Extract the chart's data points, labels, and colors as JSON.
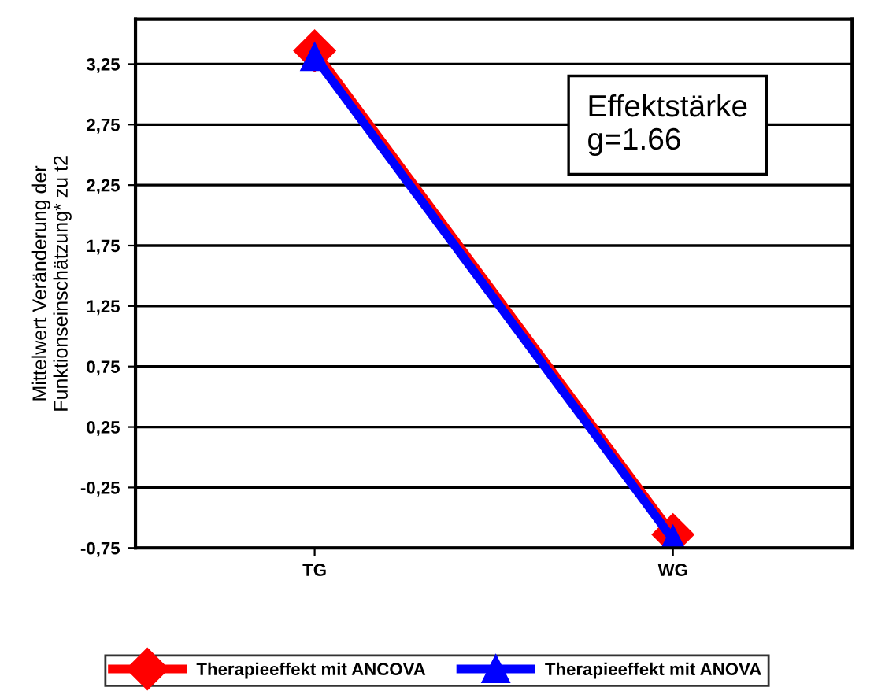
{
  "chart_data": {
    "type": "line",
    "ylabel": "Mittelwert Veränderung der\nFunktionseinschätzung* zu t2",
    "categories": [
      "TG",
      "WG"
    ],
    "series": [
      {
        "name": "Therapieeffekt mit ANCOVA",
        "color": "#ff0000",
        "values": [
          3.36,
          -0.64
        ],
        "marker": "diamond"
      },
      {
        "name": "Therapieeffekt mit ANOVA",
        "color": "#0000ff",
        "values": [
          3.31,
          -0.68
        ],
        "marker": "triangle"
      }
    ],
    "ylim": [
      -0.75,
      3.62
    ],
    "yticks": [
      {
        "value": -0.75,
        "label": "-0,75"
      },
      {
        "value": -0.25,
        "label": "-0,25"
      },
      {
        "value": 0.25,
        "label": "0,25"
      },
      {
        "value": 0.75,
        "label": "0,75"
      },
      {
        "value": 1.25,
        "label": "1,25"
      },
      {
        "value": 1.75,
        "label": "1,75"
      },
      {
        "value": 2.25,
        "label": "2,25"
      },
      {
        "value": 2.75,
        "label": "2,75"
      },
      {
        "value": 3.25,
        "label": "3,25"
      }
    ],
    "grid": "y",
    "legend": "bottom",
    "annotations": [
      "Effektstärke\ng=1.66"
    ]
  }
}
